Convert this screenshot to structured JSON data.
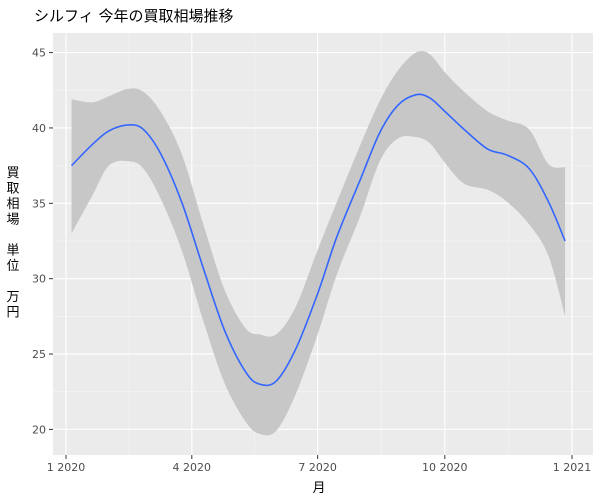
{
  "chart_data": {
    "type": "line",
    "title": "シルフィ 今年の買取相場推移",
    "xlabel": "月",
    "ylabel": "買取相場 単位 万円",
    "ylabel_lines": [
      "買",
      "取",
      "相",
      "場",
      "",
      "単",
      "位",
      "",
      "万",
      "円"
    ],
    "x_ticks": [
      "1 2020",
      "4 2020",
      "7 2020",
      "10 2020",
      "1 2021"
    ],
    "y_ticks": [
      "20",
      "25",
      "30",
      "35",
      "40",
      "45"
    ],
    "ylim": [
      18.3,
      46.3
    ],
    "grid": true,
    "series": [
      {
        "x": [
          "2020-01-05",
          "2020-01-20",
          "2020-02-01",
          "2020-02-15",
          "2020-02-26",
          "2020-03-10",
          "2020-03-25",
          "2020-04-10",
          "2020-04-25",
          "2020-05-10",
          "2020-05-20",
          "2020-06-01",
          "2020-06-15",
          "2020-07-01",
          "2020-07-15",
          "2020-08-01",
          "2020-08-15",
          "2020-08-28",
          "2020-09-10",
          "2020-09-20",
          "2020-10-01",
          "2020-10-15",
          "2020-11-01",
          "2020-11-15",
          "2020-12-01",
          "2020-12-15",
          "2020-12-27"
        ],
        "y": [
          37.5,
          38.9,
          39.8,
          40.2,
          39.9,
          38.2,
          35.0,
          30.5,
          26.5,
          23.8,
          23.0,
          23.2,
          25.3,
          29.0,
          32.8,
          36.6,
          39.7,
          41.5,
          42.2,
          42.0,
          41.1,
          39.9,
          38.6,
          38.2,
          37.3,
          35.1,
          32.5
        ],
        "lower": [
          33.0,
          35.5,
          37.5,
          37.8,
          37.3,
          35.2,
          31.8,
          27.0,
          23.0,
          20.5,
          19.7,
          19.9,
          22.3,
          26.3,
          30.3,
          34.2,
          37.8,
          39.3,
          39.4,
          39.0,
          37.7,
          36.3,
          35.9,
          35.1,
          33.6,
          31.5,
          27.5
        ],
        "upper": [
          41.9,
          41.7,
          42.1,
          42.6,
          42.4,
          41.0,
          38.2,
          33.4,
          29.2,
          26.7,
          26.3,
          26.3,
          28.1,
          31.9,
          35.1,
          38.9,
          41.8,
          43.8,
          45.0,
          44.9,
          43.7,
          42.4,
          41.1,
          40.5,
          39.9,
          37.6,
          37.4
        ]
      }
    ],
    "colors": {
      "panel": "#ebebeb",
      "grid_major": "#ffffff",
      "grid_minor": "#f5f5f5",
      "line": "#3366ff",
      "ribbon": "#c7c7c7",
      "tick": "#4d4d4d",
      "text": "#000000"
    }
  }
}
